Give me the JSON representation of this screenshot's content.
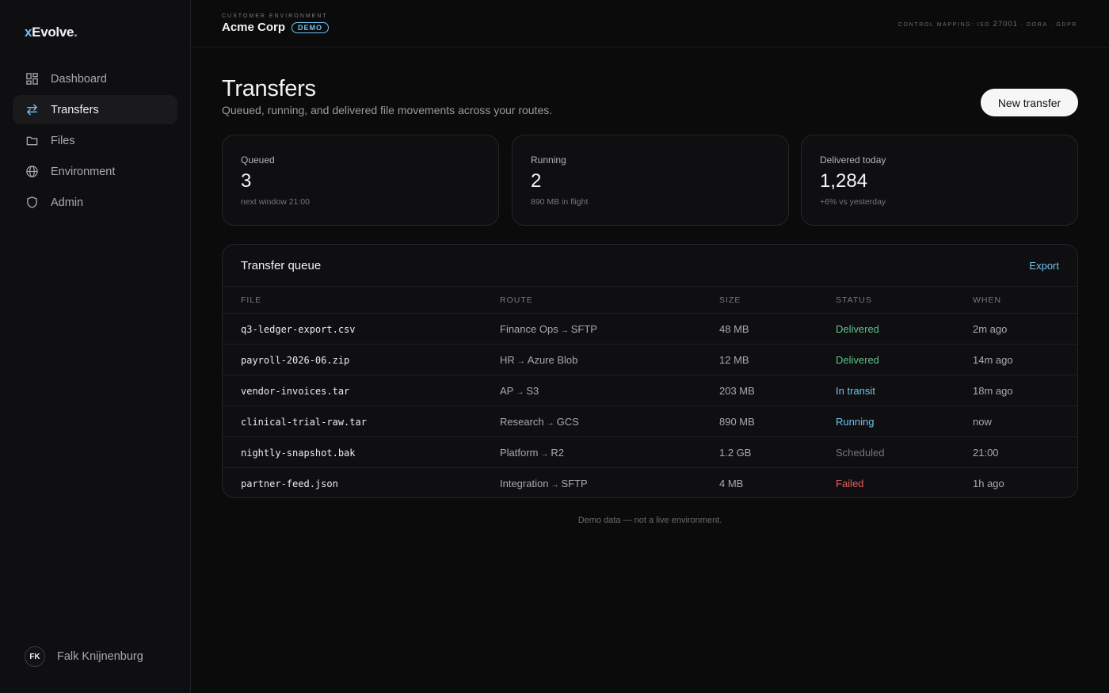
{
  "brand": {
    "x": "x",
    "name": "Evolve",
    "dot": "."
  },
  "nav": [
    {
      "label": "Dashboard",
      "icon": "dashboard-icon"
    },
    {
      "label": "Transfers",
      "icon": "transfer-arrows-icon",
      "active": true
    },
    {
      "label": "Files",
      "icon": "folder-icon"
    },
    {
      "label": "Environment",
      "icon": "globe-icon"
    },
    {
      "label": "Admin",
      "icon": "shield-icon"
    }
  ],
  "user": {
    "initials": "FK",
    "name": "Falk Knijnenburg"
  },
  "header": {
    "env_label": "Customer environment",
    "env_name": "Acme Corp",
    "badge": "DEMO",
    "mapping_prefix": "Control mapping: ISO ",
    "mapping_number": "27001",
    "mapping_suffix": " · DORA · GDPR"
  },
  "page": {
    "title": "Transfers",
    "subtitle": "Queued, running, and delivered file movements across your routes.",
    "new_button": "New transfer"
  },
  "stats": [
    {
      "label": "Queued",
      "value": "3",
      "note": "next window 21:00"
    },
    {
      "label": "Running",
      "value": "2",
      "note": "890 MB in flight"
    },
    {
      "label": "Delivered today",
      "value": "1,284",
      "note": "+6% vs yesterday"
    }
  ],
  "queue": {
    "title": "Transfer queue",
    "export": "Export",
    "columns": [
      "File",
      "Route",
      "Size",
      "Status",
      "When"
    ],
    "rows": [
      {
        "file": "q3-ledger-export.csv",
        "from": "Finance Ops",
        "to": "SFTP",
        "size": "48 MB",
        "status": "Delivered",
        "when": "2m ago"
      },
      {
        "file": "payroll-2026-06.zip",
        "from": "HR",
        "to": "Azure Blob",
        "size": "12 MB",
        "status": "Delivered",
        "when": "14m ago"
      },
      {
        "file": "vendor-invoices.tar",
        "from": "AP",
        "to": "S3",
        "size": "203 MB",
        "status": "In transit",
        "when": "18m ago"
      },
      {
        "file": "clinical-trial-raw.tar",
        "from": "Research",
        "to": "GCS",
        "size": "890 MB",
        "status": "Running",
        "when": "now"
      },
      {
        "file": "nightly-snapshot.bak",
        "from": "Platform",
        "to": "R2",
        "size": "1.2 GB",
        "status": "Scheduled",
        "when": "21:00"
      },
      {
        "file": "partner-feed.json",
        "from": "Integration",
        "to": "SFTP",
        "size": "4 MB",
        "status": "Failed",
        "when": "1h ago"
      }
    ]
  },
  "route_arrow": "→",
  "status_colors": {
    "Delivered": "#5fc08a",
    "In transit": "#6fc3f0",
    "Running": "#6fc3f0",
    "Scheduled": "#76767d",
    "Failed": "#e0605c"
  },
  "footer": "Demo data — not a live environment."
}
